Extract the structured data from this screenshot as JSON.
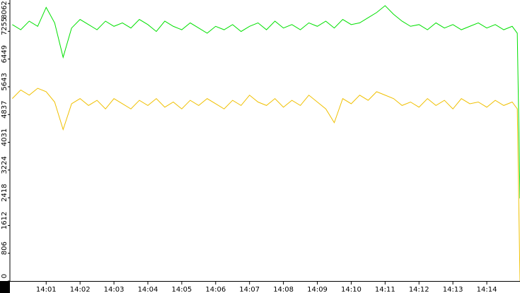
{
  "chart_data": {
    "type": "line",
    "x": [
      0,
      0.25,
      0.5,
      0.75,
      1,
      1.25,
      1.5,
      1.75,
      2,
      2.25,
      2.5,
      2.75,
      3,
      3.25,
      3.5,
      3.75,
      4,
      4.25,
      4.5,
      4.75,
      5,
      5.25,
      5.5,
      5.75,
      6,
      6.25,
      6.5,
      6.75,
      7,
      7.25,
      7.5,
      7.75,
      8,
      8.25,
      8.5,
      8.75,
      9,
      9.25,
      9.5,
      9.75,
      10,
      10.25,
      10.5,
      10.75,
      11,
      11.25,
      11.5,
      11.75,
      12,
      12.25,
      12.5,
      12.75,
      13,
      13.25,
      13.5,
      13.75,
      14,
      14.25,
      14.5,
      14.75,
      14.9,
      14.98
    ],
    "series": [
      {
        "color": "#00e000",
        "values": [
          7450,
          7300,
          7550,
          7400,
          7950,
          7500,
          6500,
          7350,
          7600,
          7450,
          7300,
          7550,
          7400,
          7500,
          7350,
          7600,
          7450,
          7250,
          7550,
          7400,
          7300,
          7500,
          7350,
          7200,
          7400,
          7300,
          7450,
          7250,
          7400,
          7500,
          7300,
          7550,
          7350,
          7450,
          7300,
          7500,
          7400,
          7550,
          7350,
          7600,
          7450,
          7500,
          7650,
          7800,
          8000,
          7750,
          7550,
          7400,
          7450,
          7300,
          7500,
          7350,
          7450,
          7300,
          7400,
          7500,
          7350,
          7450,
          7300,
          7400,
          7200,
          2400
        ]
      },
      {
        "color": "#f0c000",
        "values": [
          5300,
          5550,
          5400,
          5600,
          5500,
          5200,
          4400,
          5150,
          5300,
          5100,
          5250,
          5000,
          5300,
          5150,
          5000,
          5250,
          5100,
          5300,
          5050,
          5200,
          5000,
          5250,
          5100,
          5300,
          5150,
          5000,
          5250,
          5100,
          5400,
          5200,
          5100,
          5300,
          5050,
          5250,
          5100,
          5400,
          5200,
          5000,
          4600,
          5300,
          5150,
          5400,
          5250,
          5500,
          5400,
          5300,
          5100,
          5200,
          5050,
          5300,
          5100,
          5250,
          5000,
          5300,
          5150,
          5200,
          5050,
          5250,
          5100,
          5200,
          5000,
          0
        ]
      }
    ],
    "xlim": [
      -0.07,
      14.98
    ],
    "xticks": [
      {
        "value": 1,
        "label": "14:01"
      },
      {
        "value": 2,
        "label": "14:02"
      },
      {
        "value": 3,
        "label": "14:03"
      },
      {
        "value": 4,
        "label": "14:04"
      },
      {
        "value": 5,
        "label": "14:05"
      },
      {
        "value": 6,
        "label": "14:06"
      },
      {
        "value": 7,
        "label": "14:07"
      },
      {
        "value": 8,
        "label": "14:08"
      },
      {
        "value": 9,
        "label": "14:09"
      },
      {
        "value": 10,
        "label": "14:10"
      },
      {
        "value": 11,
        "label": "14:11"
      },
      {
        "value": 12,
        "label": "14:12"
      },
      {
        "value": 13,
        "label": "14:13"
      },
      {
        "value": 14,
        "label": "14:14"
      }
    ],
    "ylim": [
      0,
      8062
    ],
    "yticks": [
      0,
      806,
      1612,
      2418,
      3224,
      4031,
      4837,
      5643,
      6449,
      7255,
      8062
    ]
  }
}
